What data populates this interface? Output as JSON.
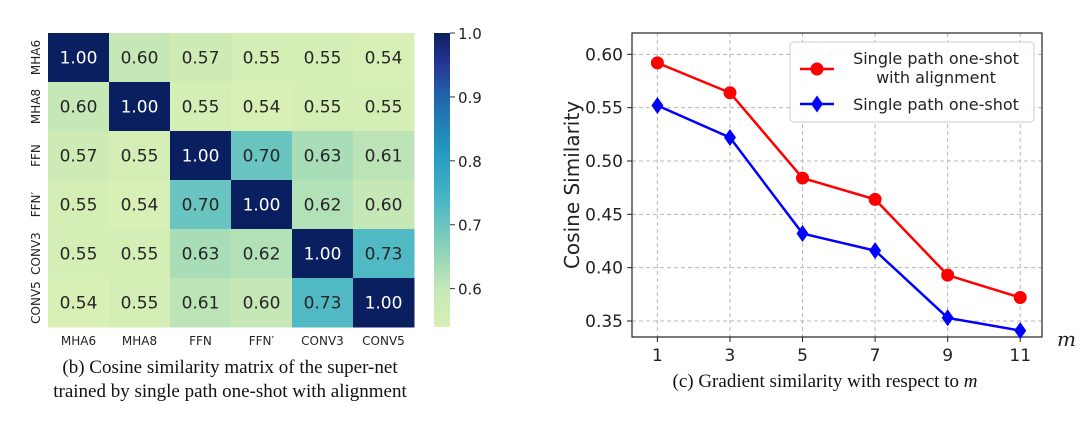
{
  "chart_data": [
    {
      "type": "heatmap",
      "title": "",
      "row_labels": [
        "MHA6",
        "MHA8",
        "FFN",
        "FFN′",
        "CONV3",
        "CONV5"
      ],
      "col_labels": [
        "MHA6",
        "MHA8",
        "FFN",
        "FFN′",
        "CONV3",
        "CONV5"
      ],
      "values": [
        [
          1.0,
          0.6,
          0.57,
          0.55,
          0.55,
          0.54
        ],
        [
          0.6,
          1.0,
          0.55,
          0.54,
          0.55,
          0.55
        ],
        [
          0.57,
          0.55,
          1.0,
          0.7,
          0.63,
          0.61
        ],
        [
          0.55,
          0.54,
          0.7,
          1.0,
          0.62,
          0.6
        ],
        [
          0.55,
          0.55,
          0.63,
          0.62,
          1.0,
          0.73
        ],
        [
          0.54,
          0.55,
          0.61,
          0.6,
          0.73,
          1.0
        ]
      ],
      "colorbar": {
        "min": 0.54,
        "max": 1.0,
        "ticks": [
          "1.0",
          "0.9",
          "0.8",
          "0.7",
          "0.6"
        ],
        "tick_values": [
          1.0,
          0.9,
          0.8,
          0.7,
          0.6
        ],
        "colormap": "YlGnBu"
      },
      "caption_line1": "(b) Cosine similarity matrix of the super-net",
      "caption_line2": "trained by single path one-shot with alignment"
    },
    {
      "type": "line",
      "x": [
        1,
        3,
        5,
        7,
        9,
        11
      ],
      "x_ticks": [
        "1",
        "3",
        "5",
        "7",
        "9",
        "11"
      ],
      "xlabel": "m",
      "ylabel": "Cosine Similarity",
      "ylim": [
        0.335,
        0.62
      ],
      "y_ticks": [
        "0.35",
        "0.40",
        "0.45",
        "0.50",
        "0.55",
        "0.60"
      ],
      "y_tick_values": [
        0.35,
        0.4,
        0.45,
        0.5,
        0.55,
        0.6
      ],
      "grid": true,
      "legend_position": "top-right",
      "series": [
        {
          "name_line1": "Single path one-shot",
          "name_line2": "with alignment",
          "color": "#ff0000",
          "marker": "circle",
          "values": [
            0.592,
            0.564,
            0.484,
            0.464,
            0.393,
            0.372
          ]
        },
        {
          "name_line1": "Single path one-shot",
          "name_line2": "",
          "color": "#0000ff",
          "marker": "diamond",
          "values": [
            0.552,
            0.522,
            0.432,
            0.416,
            0.353,
            0.341
          ]
        }
      ],
      "caption_prefix": "(c) Gradient similarity with respect to ",
      "caption_var": "m"
    }
  ]
}
